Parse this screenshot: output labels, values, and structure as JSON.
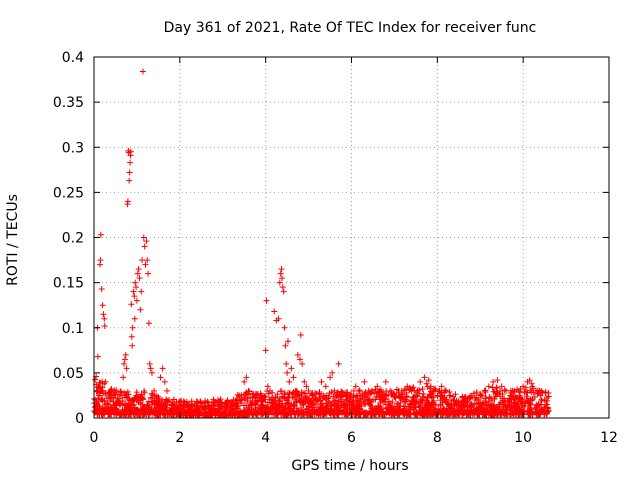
{
  "chart_data": {
    "type": "scatter",
    "title": "Day 361 of 2021, Rate Of TEC Index for receiver func",
    "xlabel": "GPS time / hours",
    "ylabel": "ROTI / TECUs",
    "xlim": [
      0,
      12
    ],
    "ylim": [
      0,
      0.4
    ],
    "xticks": [
      0,
      2,
      4,
      6,
      8,
      10,
      12
    ],
    "xtick_labels": [
      "0",
      "2",
      "4",
      "6",
      "8",
      "10",
      "12"
    ],
    "yticks": [
      0,
      0.05,
      0.1,
      0.15,
      0.2,
      0.25,
      0.3,
      0.35,
      0.4
    ],
    "ytick_labels": [
      "0",
      "0.05",
      "0.1",
      "0.15",
      "0.2",
      "0.25",
      "0.3",
      "0.35",
      "0.4"
    ],
    "grid": true,
    "marker": "+",
    "color": "#ff0000",
    "series": [
      {
        "name": "ROTI",
        "points": [
          [
            0.02,
            0.012
          ],
          [
            0.04,
            0.02
          ],
          [
            0.05,
            0.046
          ],
          [
            0.06,
            0.03
          ],
          [
            0.07,
            0.008
          ],
          [
            0.08,
            0.1
          ],
          [
            0.09,
            0.068
          ],
          [
            0.1,
            0.018
          ],
          [
            0.11,
            0.035
          ],
          [
            0.12,
            0.025
          ],
          [
            0.14,
            0.17
          ],
          [
            0.15,
            0.175
          ],
          [
            0.16,
            0.203
          ],
          [
            0.18,
            0.143
          ],
          [
            0.2,
            0.125
          ],
          [
            0.22,
            0.115
          ],
          [
            0.24,
            0.11
          ],
          [
            0.25,
            0.102
          ],
          [
            0.27,
            0.04
          ],
          [
            0.3,
            0.022
          ],
          [
            0.33,
            0.015
          ],
          [
            0.36,
            0.028
          ],
          [
            0.4,
            0.012
          ],
          [
            0.45,
            0.018
          ],
          [
            0.5,
            0.01
          ],
          [
            0.55,
            0.02
          ],
          [
            0.6,
            0.015
          ],
          [
            0.65,
            0.025
          ],
          [
            0.68,
            0.045
          ],
          [
            0.7,
            0.06
          ],
          [
            0.72,
            0.065
          ],
          [
            0.74,
            0.07
          ],
          [
            0.76,
            0.055
          ],
          [
            0.78,
            0.237
          ],
          [
            0.79,
            0.24
          ],
          [
            0.8,
            0.296
          ],
          [
            0.81,
            0.294
          ],
          [
            0.82,
            0.263
          ],
          [
            0.83,
            0.272
          ],
          [
            0.84,
            0.283
          ],
          [
            0.85,
            0.291
          ],
          [
            0.86,
            0.295
          ],
          [
            0.87,
            0.126
          ],
          [
            0.88,
            0.09
          ],
          [
            0.89,
            0.08
          ],
          [
            0.9,
            0.1
          ],
          [
            0.92,
            0.14
          ],
          [
            0.94,
            0.135
          ],
          [
            0.95,
            0.11
          ],
          [
            0.96,
            0.15
          ],
          [
            0.98,
            0.145
          ],
          [
            1.0,
            0.13
          ],
          [
            1.02,
            0.16
          ],
          [
            1.04,
            0.165
          ],
          [
            1.06,
            0.155
          ],
          [
            1.08,
            0.12
          ],
          [
            1.1,
            0.14
          ],
          [
            1.12,
            0.175
          ],
          [
            1.14,
            0.384
          ],
          [
            1.16,
            0.2
          ],
          [
            1.18,
            0.19
          ],
          [
            1.2,
            0.17
          ],
          [
            1.22,
            0.196
          ],
          [
            1.24,
            0.175
          ],
          [
            1.26,
            0.16
          ],
          [
            1.28,
            0.105
          ],
          [
            1.3,
            0.06
          ],
          [
            1.32,
            0.055
          ],
          [
            1.35,
            0.05
          ],
          [
            1.4,
            0.03
          ],
          [
            1.45,
            0.025
          ],
          [
            1.5,
            0.02
          ],
          [
            1.55,
            0.045
          ],
          [
            1.6,
            0.055
          ],
          [
            1.65,
            0.04
          ],
          [
            1.7,
            0.03
          ],
          [
            1.75,
            0.02
          ],
          [
            1.8,
            0.015
          ],
          [
            1.9,
            0.012
          ],
          [
            2.0,
            0.01
          ],
          [
            2.1,
            0.015
          ],
          [
            2.2,
            0.012
          ],
          [
            2.3,
            0.01
          ],
          [
            2.4,
            0.014
          ],
          [
            2.5,
            0.016
          ],
          [
            2.6,
            0.012
          ],
          [
            2.7,
            0.01
          ],
          [
            2.8,
            0.013
          ],
          [
            2.9,
            0.015
          ],
          [
            3.0,
            0.012
          ],
          [
            3.1,
            0.014
          ],
          [
            3.2,
            0.011
          ],
          [
            3.3,
            0.016
          ],
          [
            3.4,
            0.02
          ],
          [
            3.5,
            0.04
          ],
          [
            3.55,
            0.045
          ],
          [
            3.6,
            0.03
          ],
          [
            3.7,
            0.022
          ],
          [
            3.8,
            0.018
          ],
          [
            3.9,
            0.025
          ],
          [
            4.0,
            0.075
          ],
          [
            4.02,
            0.13
          ],
          [
            4.05,
            0.035
          ],
          [
            4.1,
            0.03
          ],
          [
            4.15,
            0.028
          ],
          [
            4.2,
            0.118
          ],
          [
            4.25,
            0.108
          ],
          [
            4.3,
            0.11
          ],
          [
            4.33,
            0.15
          ],
          [
            4.35,
            0.16
          ],
          [
            4.37,
            0.165
          ],
          [
            4.38,
            0.155
          ],
          [
            4.4,
            0.145
          ],
          [
            4.42,
            0.14
          ],
          [
            4.44,
            0.1
          ],
          [
            4.46,
            0.08
          ],
          [
            4.48,
            0.06
          ],
          [
            4.5,
            0.05
          ],
          [
            4.52,
            0.085
          ],
          [
            4.55,
            0.04
          ],
          [
            4.6,
            0.055
          ],
          [
            4.65,
            0.045
          ],
          [
            4.7,
            0.03
          ],
          [
            4.75,
            0.07
          ],
          [
            4.8,
            0.065
          ],
          [
            4.82,
            0.092
          ],
          [
            4.85,
            0.06
          ],
          [
            4.9,
            0.04
          ],
          [
            4.95,
            0.035
          ],
          [
            5.0,
            0.03
          ],
          [
            5.1,
            0.025
          ],
          [
            5.2,
            0.02
          ],
          [
            5.3,
            0.04
          ],
          [
            5.4,
            0.035
          ],
          [
            5.5,
            0.045
          ],
          [
            5.55,
            0.05
          ],
          [
            5.6,
            0.03
          ],
          [
            5.7,
            0.06
          ],
          [
            5.8,
            0.025
          ],
          [
            5.9,
            0.02
          ],
          [
            6.0,
            0.015
          ],
          [
            6.1,
            0.035
          ],
          [
            6.2,
            0.025
          ],
          [
            6.3,
            0.04
          ],
          [
            6.4,
            0.03
          ],
          [
            6.5,
            0.02
          ],
          [
            6.6,
            0.035
          ],
          [
            6.7,
            0.028
          ],
          [
            6.8,
            0.04
          ],
          [
            6.9,
            0.03
          ],
          [
            7.0,
            0.025
          ],
          [
            7.1,
            0.03
          ],
          [
            7.2,
            0.02
          ],
          [
            7.3,
            0.035
          ],
          [
            7.4,
            0.03
          ],
          [
            7.5,
            0.025
          ],
          [
            7.6,
            0.04
          ],
          [
            7.7,
            0.045
          ],
          [
            7.75,
            0.038
          ],
          [
            7.8,
            0.042
          ],
          [
            7.85,
            0.035
          ],
          [
            7.9,
            0.03
          ],
          [
            8.0,
            0.025
          ],
          [
            8.1,
            0.035
          ],
          [
            8.2,
            0.03
          ],
          [
            8.3,
            0.025
          ],
          [
            8.4,
            0.02
          ],
          [
            8.5,
            0.015
          ],
          [
            8.6,
            0.02
          ],
          [
            8.7,
            0.018
          ],
          [
            8.8,
            0.015
          ],
          [
            8.9,
            0.02
          ],
          [
            9.0,
            0.025
          ],
          [
            9.1,
            0.03
          ],
          [
            9.2,
            0.035
          ],
          [
            9.3,
            0.04
          ],
          [
            9.4,
            0.042
          ],
          [
            9.5,
            0.035
          ],
          [
            9.6,
            0.03
          ],
          [
            9.7,
            0.025
          ],
          [
            9.8,
            0.02
          ],
          [
            9.9,
            0.03
          ],
          [
            10.0,
            0.035
          ],
          [
            10.1,
            0.04
          ],
          [
            10.15,
            0.042
          ],
          [
            10.2,
            0.038
          ],
          [
            10.3,
            0.03
          ],
          [
            10.4,
            0.025
          ],
          [
            10.5,
            0.02
          ],
          [
            10.55,
            0.015
          ]
        ]
      }
    ],
    "baseline_band": [
      [
        0.0,
        0.004,
        0.05
      ],
      [
        0.3,
        0.004,
        0.035
      ],
      [
        0.6,
        0.004,
        0.03
      ],
      [
        0.9,
        0.004,
        0.03
      ],
      [
        1.2,
        0.004,
        0.03
      ],
      [
        1.5,
        0.004,
        0.025
      ],
      [
        1.8,
        0.004,
        0.022
      ],
      [
        2.1,
        0.003,
        0.02
      ],
      [
        2.4,
        0.003,
        0.02
      ],
      [
        2.7,
        0.003,
        0.02
      ],
      [
        3.0,
        0.003,
        0.022
      ],
      [
        3.3,
        0.003,
        0.025
      ],
      [
        3.6,
        0.004,
        0.03
      ],
      [
        3.9,
        0.004,
        0.03
      ],
      [
        4.2,
        0.004,
        0.03
      ],
      [
        4.5,
        0.004,
        0.03
      ],
      [
        4.8,
        0.004,
        0.03
      ],
      [
        5.1,
        0.004,
        0.028
      ],
      [
        5.4,
        0.004,
        0.03
      ],
      [
        5.7,
        0.004,
        0.03
      ],
      [
        6.0,
        0.004,
        0.03
      ],
      [
        6.3,
        0.004,
        0.032
      ],
      [
        6.6,
        0.004,
        0.032
      ],
      [
        6.9,
        0.004,
        0.032
      ],
      [
        7.2,
        0.004,
        0.032
      ],
      [
        7.5,
        0.004,
        0.035
      ],
      [
        7.8,
        0.004,
        0.035
      ],
      [
        8.1,
        0.004,
        0.032
      ],
      [
        8.4,
        0.004,
        0.028
      ],
      [
        8.7,
        0.004,
        0.025
      ],
      [
        9.0,
        0.004,
        0.03
      ],
      [
        9.3,
        0.004,
        0.035
      ],
      [
        9.6,
        0.004,
        0.035
      ],
      [
        9.9,
        0.004,
        0.032
      ],
      [
        10.2,
        0.004,
        0.035
      ],
      [
        10.6,
        0.004,
        0.03
      ]
    ]
  }
}
